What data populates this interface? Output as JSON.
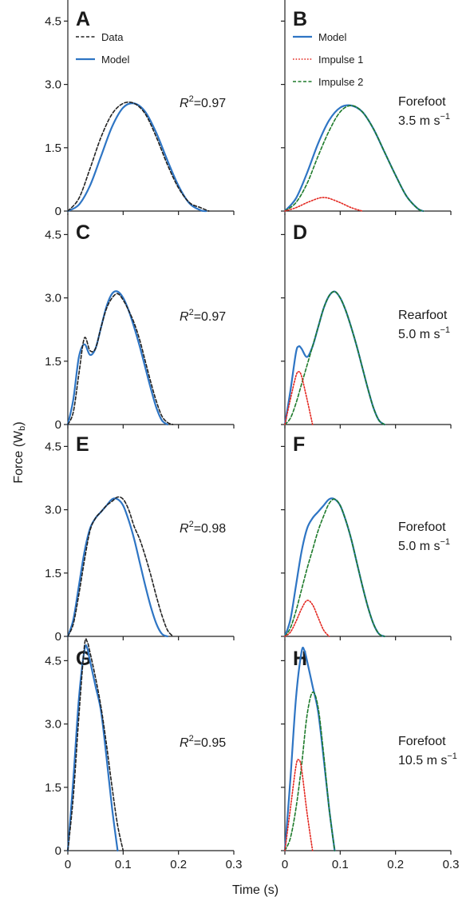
{
  "figure": {
    "ylabel": "Force (W",
    "ylabel_sub": "b",
    "ylabel_close": ")",
    "xlabel": "Time (s)"
  },
  "colors": {
    "data": "#222222",
    "model": "#2e75c4",
    "impulse1": "#e3261f",
    "impulse2": "#1d7a2a"
  },
  "chart_data": [
    {
      "panel": "A",
      "type": "line",
      "xlim": [
        0,
        0.3
      ],
      "ylim": [
        0,
        5.0
      ],
      "xticks": [
        "0",
        "0.1",
        "0.2",
        "0.3"
      ],
      "yticks": [
        "0",
        "1.5",
        "3.0",
        "4.5"
      ],
      "show_xticklabels": false,
      "annotation": {
        "italic": "R",
        "sup": "2",
        "text": "=0.97"
      },
      "legend": [
        {
          "label": "Data",
          "series": "data"
        },
        {
          "label": "Model",
          "series": "model"
        }
      ],
      "series": [
        {
          "name": "Data",
          "key": "data",
          "style": "dashed",
          "x": [
            0,
            0.02,
            0.04,
            0.06,
            0.08,
            0.1,
            0.12,
            0.14,
            0.16,
            0.18,
            0.2,
            0.22,
            0.24,
            0.255
          ],
          "y": [
            0,
            0.3,
            1.0,
            1.75,
            2.3,
            2.55,
            2.55,
            2.3,
            1.75,
            1.1,
            0.55,
            0.2,
            0.08,
            0
          ]
        },
        {
          "name": "Model",
          "key": "model",
          "style": "solid",
          "x": [
            0,
            0.02,
            0.04,
            0.06,
            0.08,
            0.1,
            0.12,
            0.14,
            0.16,
            0.18,
            0.2,
            0.22,
            0.24,
            0.25
          ],
          "y": [
            0,
            0.15,
            0.6,
            1.3,
            2.0,
            2.45,
            2.55,
            2.35,
            1.85,
            1.2,
            0.6,
            0.18,
            0.02,
            0
          ]
        }
      ]
    },
    {
      "panel": "B",
      "type": "line",
      "xlim": [
        0,
        0.3
      ],
      "ylim": [
        0,
        5.0
      ],
      "xticks": [
        "0",
        "0.1",
        "0.2",
        "0.3"
      ],
      "yticks": [
        "0",
        "1.5",
        "3.0",
        "4.5"
      ],
      "show_xticklabels": false,
      "show_yticklabels": false,
      "annotation": {
        "line1": "Forefoot",
        "line2_value": "3.5 m s",
        "line2_sup": "−1"
      },
      "legend": [
        {
          "label": "Model",
          "series": "model"
        },
        {
          "label": "Impulse 1",
          "series": "impulse1"
        },
        {
          "label": "Impulse 2",
          "series": "impulse2"
        }
      ],
      "series": [
        {
          "name": "Model",
          "key": "model",
          "style": "solid",
          "x": [
            0,
            0.02,
            0.04,
            0.06,
            0.08,
            0.1,
            0.12,
            0.14,
            0.16,
            0.18,
            0.2,
            0.22,
            0.24,
            0.25
          ],
          "y": [
            0,
            0.3,
            0.9,
            1.6,
            2.15,
            2.45,
            2.5,
            2.35,
            1.95,
            1.4,
            0.85,
            0.35,
            0.06,
            0
          ]
        },
        {
          "name": "Impulse 1",
          "key": "impulse1",
          "style": "dotted",
          "x": [
            0,
            0.02,
            0.04,
            0.06,
            0.07,
            0.08,
            0.1,
            0.12,
            0.14
          ],
          "y": [
            0,
            0.08,
            0.2,
            0.3,
            0.32,
            0.3,
            0.2,
            0.08,
            0
          ]
        },
        {
          "name": "Impulse 2",
          "key": "impulse2",
          "style": "dashed",
          "x": [
            0,
            0.02,
            0.04,
            0.06,
            0.08,
            0.1,
            0.12,
            0.14,
            0.16,
            0.18,
            0.2,
            0.22,
            0.24,
            0.25
          ],
          "y": [
            0,
            0.2,
            0.65,
            1.3,
            1.9,
            2.35,
            2.5,
            2.35,
            1.95,
            1.4,
            0.85,
            0.35,
            0.06,
            0
          ]
        }
      ]
    },
    {
      "panel": "C",
      "type": "line",
      "xlim": [
        0,
        0.3
      ],
      "ylim": [
        0,
        5.0
      ],
      "xticks": [
        "0",
        "0.1",
        "0.2",
        "0.3"
      ],
      "yticks": [
        "0",
        "1.5",
        "3.0",
        "4.5"
      ],
      "show_xticklabels": false,
      "annotation": {
        "italic": "R",
        "sup": "2",
        "text": "=0.97"
      },
      "series": [
        {
          "name": "Data",
          "key": "data",
          "style": "dashed",
          "x": [
            0,
            0.01,
            0.02,
            0.03,
            0.04,
            0.05,
            0.06,
            0.07,
            0.08,
            0.09,
            0.1,
            0.11,
            0.12,
            0.13,
            0.14,
            0.15,
            0.16,
            0.17,
            0.18,
            0.19
          ],
          "y": [
            0,
            0.3,
            1.2,
            2.05,
            1.75,
            1.8,
            2.3,
            2.75,
            3.0,
            3.1,
            2.95,
            2.7,
            2.4,
            2.0,
            1.5,
            1.0,
            0.55,
            0.2,
            0.05,
            0
          ]
        },
        {
          "name": "Model",
          "key": "model",
          "style": "solid",
          "x": [
            0,
            0.01,
            0.02,
            0.03,
            0.04,
            0.05,
            0.06,
            0.07,
            0.08,
            0.09,
            0.1,
            0.11,
            0.12,
            0.13,
            0.14,
            0.15,
            0.16,
            0.17,
            0.18
          ],
          "y": [
            0,
            0.6,
            1.6,
            1.9,
            1.65,
            1.8,
            2.3,
            2.8,
            3.1,
            3.15,
            3.0,
            2.7,
            2.3,
            1.85,
            1.35,
            0.85,
            0.4,
            0.1,
            0
          ]
        }
      ]
    },
    {
      "panel": "D",
      "type": "line",
      "xlim": [
        0,
        0.3
      ],
      "ylim": [
        0,
        5.0
      ],
      "xticks": [
        "0",
        "0.1",
        "0.2",
        "0.3"
      ],
      "yticks": [
        "0",
        "1.5",
        "3.0",
        "4.5"
      ],
      "show_xticklabels": false,
      "show_yticklabels": false,
      "annotation": {
        "line1": "Rearfoot",
        "line2_value": "5.0 m s",
        "line2_sup": "−1"
      },
      "series": [
        {
          "name": "Model",
          "key": "model",
          "style": "solid",
          "x": [
            0,
            0.01,
            0.02,
            0.025,
            0.03,
            0.04,
            0.05,
            0.06,
            0.07,
            0.08,
            0.09,
            0.1,
            0.11,
            0.12,
            0.13,
            0.14,
            0.15,
            0.16,
            0.17,
            0.18
          ],
          "y": [
            0,
            0.8,
            1.7,
            1.85,
            1.8,
            1.6,
            1.85,
            2.3,
            2.75,
            3.05,
            3.15,
            3.0,
            2.7,
            2.3,
            1.85,
            1.35,
            0.85,
            0.4,
            0.1,
            0
          ]
        },
        {
          "name": "Impulse 1",
          "key": "impulse1",
          "style": "dotted",
          "x": [
            0,
            0.01,
            0.02,
            0.025,
            0.03,
            0.04,
            0.05
          ],
          "y": [
            0,
            0.6,
            1.15,
            1.25,
            1.15,
            0.6,
            0
          ]
        },
        {
          "name": "Impulse 2",
          "key": "impulse2",
          "style": "dashed",
          "x": [
            0,
            0.01,
            0.02,
            0.03,
            0.04,
            0.05,
            0.06,
            0.07,
            0.08,
            0.09,
            0.1,
            0.11,
            0.12,
            0.13,
            0.14,
            0.15,
            0.16,
            0.17,
            0.18
          ],
          "y": [
            0,
            0.15,
            0.5,
            0.95,
            1.4,
            1.85,
            2.3,
            2.75,
            3.05,
            3.15,
            3.0,
            2.7,
            2.3,
            1.85,
            1.35,
            0.85,
            0.4,
            0.1,
            0
          ]
        }
      ]
    },
    {
      "panel": "E",
      "type": "line",
      "xlim": [
        0,
        0.3
      ],
      "ylim": [
        0,
        5.0
      ],
      "xticks": [
        "0",
        "0.1",
        "0.2",
        "0.3"
      ],
      "yticks": [
        "0",
        "1.5",
        "3.0",
        "4.5"
      ],
      "show_xticklabels": false,
      "annotation": {
        "italic": "R",
        "sup": "2",
        "text": "=0.98"
      },
      "series": [
        {
          "name": "Data",
          "key": "data",
          "style": "dashed",
          "x": [
            0,
            0.01,
            0.02,
            0.03,
            0.04,
            0.05,
            0.06,
            0.07,
            0.08,
            0.09,
            0.1,
            0.11,
            0.12,
            0.13,
            0.14,
            0.15,
            0.16,
            0.17,
            0.18,
            0.19
          ],
          "y": [
            0,
            0.3,
            1.0,
            1.8,
            2.5,
            2.8,
            2.95,
            3.1,
            3.2,
            3.3,
            3.25,
            3.0,
            2.6,
            2.3,
            1.9,
            1.45,
            0.95,
            0.5,
            0.15,
            0
          ]
        },
        {
          "name": "Model",
          "key": "model",
          "style": "solid",
          "x": [
            0,
            0.01,
            0.02,
            0.03,
            0.04,
            0.05,
            0.06,
            0.07,
            0.08,
            0.09,
            0.1,
            0.11,
            0.12,
            0.13,
            0.14,
            0.15,
            0.16,
            0.17,
            0.18
          ],
          "y": [
            0,
            0.4,
            1.2,
            2.0,
            2.55,
            2.8,
            2.95,
            3.1,
            3.25,
            3.25,
            3.1,
            2.75,
            2.3,
            1.75,
            1.2,
            0.7,
            0.3,
            0.06,
            0
          ]
        }
      ]
    },
    {
      "panel": "F",
      "type": "line",
      "xlim": [
        0,
        0.3
      ],
      "ylim": [
        0,
        5.0
      ],
      "xticks": [
        "0",
        "0.1",
        "0.2",
        "0.3"
      ],
      "yticks": [
        "0",
        "1.5",
        "3.0",
        "4.5"
      ],
      "show_xticklabels": false,
      "show_yticklabels": false,
      "annotation": {
        "line1": "Forefoot",
        "line2_value": "5.0 m s",
        "line2_sup": "−1"
      },
      "series": [
        {
          "name": "Model",
          "key": "model",
          "style": "solid",
          "x": [
            0,
            0.01,
            0.02,
            0.03,
            0.04,
            0.05,
            0.06,
            0.07,
            0.08,
            0.09,
            0.1,
            0.11,
            0.12,
            0.13,
            0.14,
            0.15,
            0.16,
            0.17,
            0.18
          ],
          "y": [
            0,
            0.4,
            1.2,
            2.0,
            2.55,
            2.8,
            2.95,
            3.1,
            3.25,
            3.25,
            3.1,
            2.75,
            2.3,
            1.75,
            1.2,
            0.7,
            0.3,
            0.06,
            0
          ]
        },
        {
          "name": "Impulse 1",
          "key": "impulse1",
          "style": "dotted",
          "x": [
            0,
            0.01,
            0.02,
            0.03,
            0.04,
            0.05,
            0.06,
            0.07,
            0.08
          ],
          "y": [
            0,
            0.1,
            0.35,
            0.65,
            0.85,
            0.75,
            0.45,
            0.15,
            0
          ]
        },
        {
          "name": "Impulse 2",
          "key": "impulse2",
          "style": "dashed",
          "x": [
            0,
            0.01,
            0.02,
            0.03,
            0.04,
            0.05,
            0.06,
            0.07,
            0.08,
            0.09,
            0.1,
            0.11,
            0.12,
            0.13,
            0.14,
            0.15,
            0.16,
            0.17,
            0.18
          ],
          "y": [
            0,
            0.2,
            0.6,
            1.1,
            1.6,
            2.05,
            2.5,
            2.85,
            3.15,
            3.25,
            3.1,
            2.75,
            2.3,
            1.75,
            1.2,
            0.7,
            0.3,
            0.06,
            0
          ]
        }
      ]
    },
    {
      "panel": "G",
      "type": "line",
      "xlim": [
        0,
        0.3
      ],
      "ylim": [
        0,
        5.0
      ],
      "xticks": [
        "0",
        "0.1",
        "0.2",
        "0.3"
      ],
      "yticks": [
        "0",
        "1.5",
        "3.0",
        "4.5"
      ],
      "show_xticklabels": true,
      "annotation": {
        "italic": "R",
        "sup": "2",
        "text": "=0.95"
      },
      "series": [
        {
          "name": "Data",
          "key": "data",
          "style": "dashed",
          "x": [
            0,
            0.01,
            0.02,
            0.03,
            0.035,
            0.04,
            0.05,
            0.06,
            0.07,
            0.08,
            0.09,
            0.1
          ],
          "y": [
            0,
            1.3,
            3.2,
            4.85,
            4.95,
            4.7,
            4.1,
            3.4,
            2.5,
            1.5,
            0.6,
            0
          ]
        },
        {
          "name": "Model",
          "key": "model",
          "style": "solid",
          "x": [
            0,
            0.01,
            0.02,
            0.03,
            0.035,
            0.04,
            0.05,
            0.06,
            0.07,
            0.08,
            0.09
          ],
          "y": [
            0,
            1.7,
            3.6,
            4.75,
            4.8,
            4.5,
            3.9,
            3.3,
            2.2,
            1.0,
            0
          ]
        }
      ]
    },
    {
      "panel": "H",
      "type": "line",
      "xlim": [
        0,
        0.3
      ],
      "ylim": [
        0,
        5.0
      ],
      "xticks": [
        "0",
        "0.1",
        "0.2",
        "0.3"
      ],
      "yticks": [
        "0",
        "1.5",
        "3.0",
        "4.5"
      ],
      "show_xticklabels": true,
      "show_yticklabels": false,
      "annotation": {
        "line1": "Forefoot",
        "line2_value": "10.5 m s",
        "line2_sup": "−1"
      },
      "series": [
        {
          "name": "Model",
          "key": "model",
          "style": "solid",
          "x": [
            0,
            0.01,
            0.02,
            0.03,
            0.035,
            0.04,
            0.05,
            0.06,
            0.07,
            0.08,
            0.09
          ],
          "y": [
            0,
            1.7,
            3.6,
            4.7,
            4.75,
            4.5,
            3.9,
            3.3,
            2.2,
            1.0,
            0
          ]
        },
        {
          "name": "Impulse 1",
          "key": "impulse1",
          "style": "dotted",
          "x": [
            0,
            0.01,
            0.02,
            0.025,
            0.03,
            0.04,
            0.05
          ],
          "y": [
            0,
            1.0,
            2.0,
            2.15,
            1.95,
            0.9,
            0
          ]
        },
        {
          "name": "Impulse 2",
          "key": "impulse2",
          "style": "dashed",
          "x": [
            0,
            0.01,
            0.02,
            0.03,
            0.04,
            0.05,
            0.06,
            0.07,
            0.08,
            0.09
          ],
          "y": [
            0,
            0.3,
            1.0,
            2.0,
            3.2,
            3.75,
            3.4,
            2.3,
            1.0,
            0
          ]
        }
      ]
    }
  ]
}
